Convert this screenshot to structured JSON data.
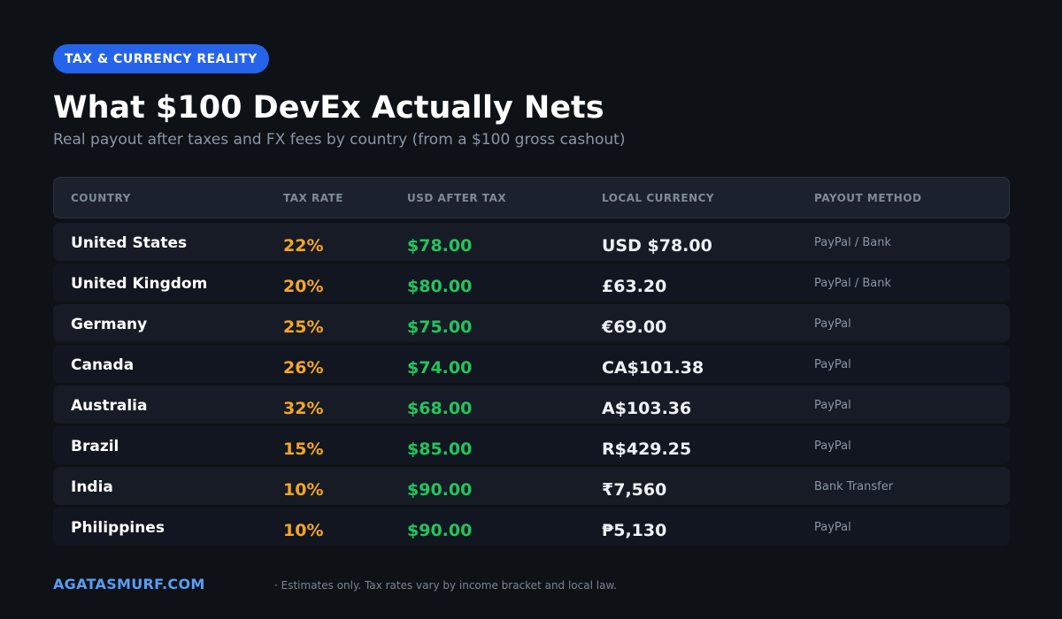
{
  "badge": "TAX & CURRENCY REALITY",
  "title": "What $100 DevEx Actually Nets",
  "subtitle": "Real payout after taxes and FX fees by country (from a $100 gross cashout)",
  "table": {
    "headers": [
      "COUNTRY",
      "TAX RATE",
      "USD AFTER TAX",
      "LOCAL CURRENCY",
      "PAYOUT METHOD"
    ],
    "rows": [
      {
        "country": "United States",
        "tax": "22%",
        "usd": "$78.00",
        "local": "USD $78.00",
        "method": "PayPal / Bank"
      },
      {
        "country": "United Kingdom",
        "tax": "20%",
        "usd": "$80.00",
        "local": "£63.20",
        "method": "PayPal / Bank"
      },
      {
        "country": "Germany",
        "tax": "25%",
        "usd": "$75.00",
        "local": "€69.00",
        "method": "PayPal"
      },
      {
        "country": "Canada",
        "tax": "26%",
        "usd": "$74.00",
        "local": "CA$101.38",
        "method": "PayPal"
      },
      {
        "country": "Australia",
        "tax": "32%",
        "usd": "$68.00",
        "local": "A$103.36",
        "method": "PayPal"
      },
      {
        "country": "Brazil",
        "tax": "15%",
        "usd": "$85.00",
        "local": "R$429.25",
        "method": "PayPal"
      },
      {
        "country": "India",
        "tax": "10%",
        "usd": "$90.00",
        "local": "₹7,560",
        "method": "Bank Transfer"
      },
      {
        "country": "Philippines",
        "tax": "10%",
        "usd": "$90.00",
        "local": "₱5,130",
        "method": "PayPal"
      }
    ]
  },
  "footer": {
    "brand": "AGATASMURF.COM",
    "note": "· Estimates only. Tax rates vary by income bracket and local law."
  },
  "colors": {
    "background": "#0e1217",
    "badge": "#2563eb",
    "tax_rate": "#f5a623",
    "usd_after_tax": "#22c55e",
    "brand": "#5b9cf5"
  }
}
